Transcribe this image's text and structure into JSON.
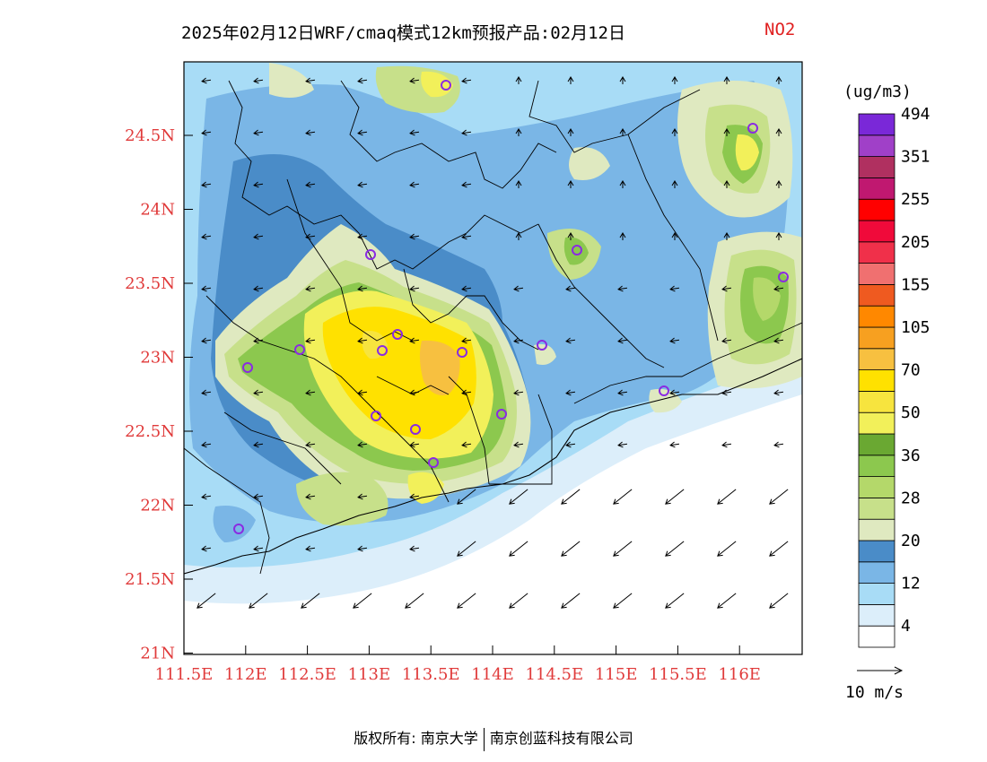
{
  "title": {
    "main": "2025年02月12日WRF/cmaq模式12km预报产品:02月12日",
    "species": "NO2"
  },
  "axes": {
    "lat_ticks": [
      "24.5N",
      "24N",
      "23.5N",
      "23N",
      "22.5N",
      "22N",
      "21.5N",
      "21N"
    ],
    "lon_ticks": [
      "111.5E",
      "112E",
      "112.5E",
      "113E",
      "113.5E",
      "114E",
      "114.5E",
      "115E",
      "115.5E",
      "116E"
    ]
  },
  "colorbar": {
    "unit": "(ug/m3)",
    "colors": [
      "#ffffff",
      "#dceefa",
      "#a8dcf6",
      "#7ab6e6",
      "#4a8cc8",
      "#dfe9c0",
      "#c7e08a",
      "#b4d86a",
      "#8cc84e",
      "#6aa832",
      "#f2f05a",
      "#f7e43e",
      "#ffe100",
      "#f7c040",
      "#f7a020",
      "#ff8800",
      "#ef5a20",
      "#f07070",
      "#f0304a",
      "#f00a3a",
      "#ff0000",
      "#c01870",
      "#b03060",
      "#a040c8",
      "#7a28d8"
    ],
    "labels": [
      "4",
      "12",
      "20",
      "28",
      "36",
      "50",
      "70",
      "105",
      "155",
      "205",
      "255",
      "351",
      "494"
    ],
    "accent_text": "#e03a3a"
  },
  "wind_legend": {
    "label": "10 m/s"
  },
  "footer": {
    "left": "版权所有: 南京大学",
    "right": "南京创蓝科技有限公司"
  }
}
